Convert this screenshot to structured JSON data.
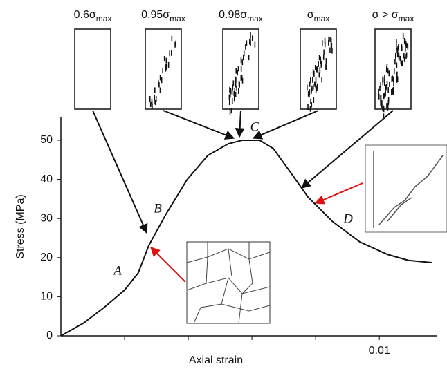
{
  "chart_data": {
    "type": "line",
    "xlabel": "Axial strain",
    "ylabel": "Stress (MPa)",
    "x": [
      0,
      0.0007,
      0.00135,
      0.002,
      0.00243,
      0.00276,
      0.0033,
      0.00396,
      0.00461,
      0.00526,
      0.0057,
      0.00624,
      0.00667,
      0.00722,
      0.00776,
      0.00852,
      0.00939,
      0.01026,
      0.01091,
      0.01167
    ],
    "series": [
      {
        "color": "#111111",
        "values": [
          0,
          3.2,
          7.2,
          11.7,
          16.1,
          23.1,
          31.1,
          39.9,
          46.1,
          49.1,
          50,
          50,
          47.9,
          41.7,
          35.5,
          29.3,
          24,
          20.8,
          19.3,
          18.7
        ]
      }
    ],
    "xlim": [
      0,
      0.0118
    ],
    "ylim": [
      0,
      56
    ],
    "xticks": [
      0.01
    ],
    "xminor_ticks": [
      0.002,
      0.004,
      0.006,
      0.008
    ],
    "yticks": [
      0,
      10,
      20,
      30,
      40,
      50
    ],
    "point_labels": [
      "A",
      "B",
      "C",
      "D"
    ],
    "stage_labels": [
      {
        "main": "0.6σ",
        "sub": "max"
      },
      {
        "main": "0.95σ",
        "sub": "max"
      },
      {
        "main": "0.98σ",
        "sub": "max"
      },
      {
        "main": "σ",
        "sub": "max"
      },
      {
        "main": "σ > σ",
        "sub": "max"
      }
    ]
  }
}
